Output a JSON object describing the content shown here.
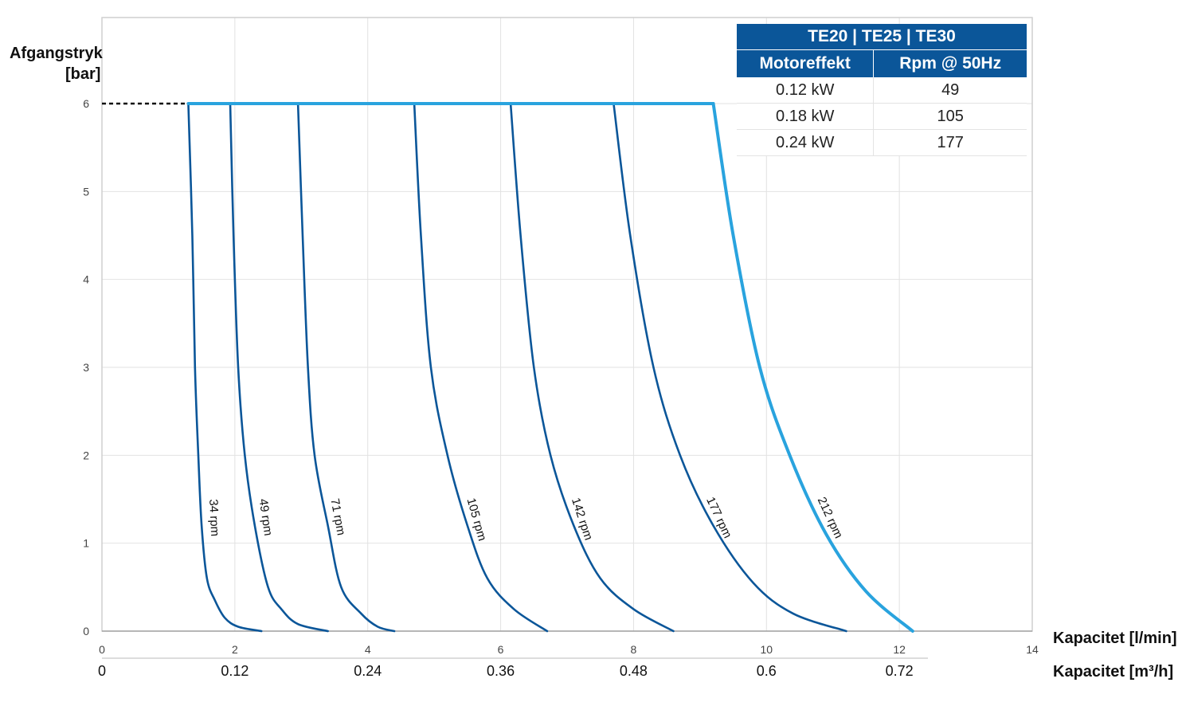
{
  "chart_data": {
    "type": "line",
    "ylabel_line1": "Afgangstryk",
    "ylabel_line2": "[bar]",
    "xlabel": "Kapacitet [l/min]",
    "xlabel2": "Kapacitet [m³/h]",
    "xlim": [
      0,
      14
    ],
    "ylim": [
      0,
      6
    ],
    "grid": true,
    "x_ticks": [
      "0",
      "2",
      "4",
      "6",
      "8",
      "10",
      "12",
      "14"
    ],
    "y_ticks": [
      "0",
      "1",
      "2",
      "3",
      "4",
      "5",
      "6"
    ],
    "x2_ticks": [
      "0",
      "0.12",
      "0.24",
      "0.36",
      "0.48",
      "0.6",
      "0.72"
    ],
    "max_pressure_line": {
      "x": [
        0,
        1.3
      ],
      "y": [
        6,
        6
      ],
      "style": "dashed",
      "color": "#111111"
    },
    "series": [
      {
        "name": "34 rpm",
        "color": "#0b5699",
        "x": [
          1.3,
          1.36,
          1.4,
          1.45,
          1.5,
          1.58,
          1.7,
          1.85,
          2.05,
          2.4
        ],
        "y": [
          6,
          4.5,
          3,
          2,
          1.2,
          0.6,
          0.35,
          0.15,
          0.05,
          0
        ]
      },
      {
        "name": "49 rpm",
        "color": "#0b5699",
        "x": [
          1.93,
          1.98,
          2.05,
          2.15,
          2.3,
          2.5,
          2.7,
          2.95,
          3.4
        ],
        "y": [
          6,
          4.5,
          3,
          2,
          1.2,
          0.5,
          0.25,
          0.08,
          0
        ]
      },
      {
        "name": "71 rpm",
        "color": "#0b5699",
        "x": [
          2.95,
          3.02,
          3.1,
          3.2,
          3.4,
          3.6,
          3.9,
          4.15,
          4.4
        ],
        "y": [
          6,
          4.5,
          3,
          2,
          1.2,
          0.5,
          0.2,
          0.05,
          0
        ]
      },
      {
        "name": "105 rpm",
        "color": "#0b5699",
        "x": [
          4.7,
          4.8,
          4.95,
          5.2,
          5.5,
          5.8,
          6.2,
          6.7
        ],
        "y": [
          6,
          4.5,
          3,
          2,
          1.2,
          0.6,
          0.25,
          0
        ]
      },
      {
        "name": "142 rpm",
        "color": "#0b5699",
        "x": [
          6.15,
          6.3,
          6.5,
          6.75,
          7.1,
          7.5,
          8.0,
          8.6
        ],
        "y": [
          6,
          4.5,
          3,
          2,
          1.2,
          0.6,
          0.25,
          0
        ]
      },
      {
        "name": "177 rpm",
        "color": "#0b5699",
        "x": [
          7.7,
          7.95,
          8.3,
          8.7,
          9.2,
          9.8,
          10.4,
          11.2
        ],
        "y": [
          6,
          4.5,
          3,
          2,
          1.2,
          0.55,
          0.2,
          0
        ]
      },
      {
        "name": "212 rpm",
        "color": "#29a3de",
        "x": [
          9.2,
          9.5,
          9.9,
          10.35,
          10.9,
          11.5,
          12.2
        ],
        "y": [
          6,
          4.5,
          3,
          2,
          1.1,
          0.45,
          0
        ]
      }
    ],
    "top_line": {
      "x": [
        1.3,
        9.2
      ],
      "y": [
        6,
        6
      ],
      "color": "#29a3de"
    }
  },
  "table": {
    "title": "TE20 | TE25 | TE30",
    "headers": [
      "Motoreffekt",
      "Rpm @ 50Hz"
    ],
    "rows": [
      [
        "0.12 kW",
        "49"
      ],
      [
        "0.18 kW",
        "105"
      ],
      [
        "0.24 kW",
        "177"
      ]
    ]
  }
}
